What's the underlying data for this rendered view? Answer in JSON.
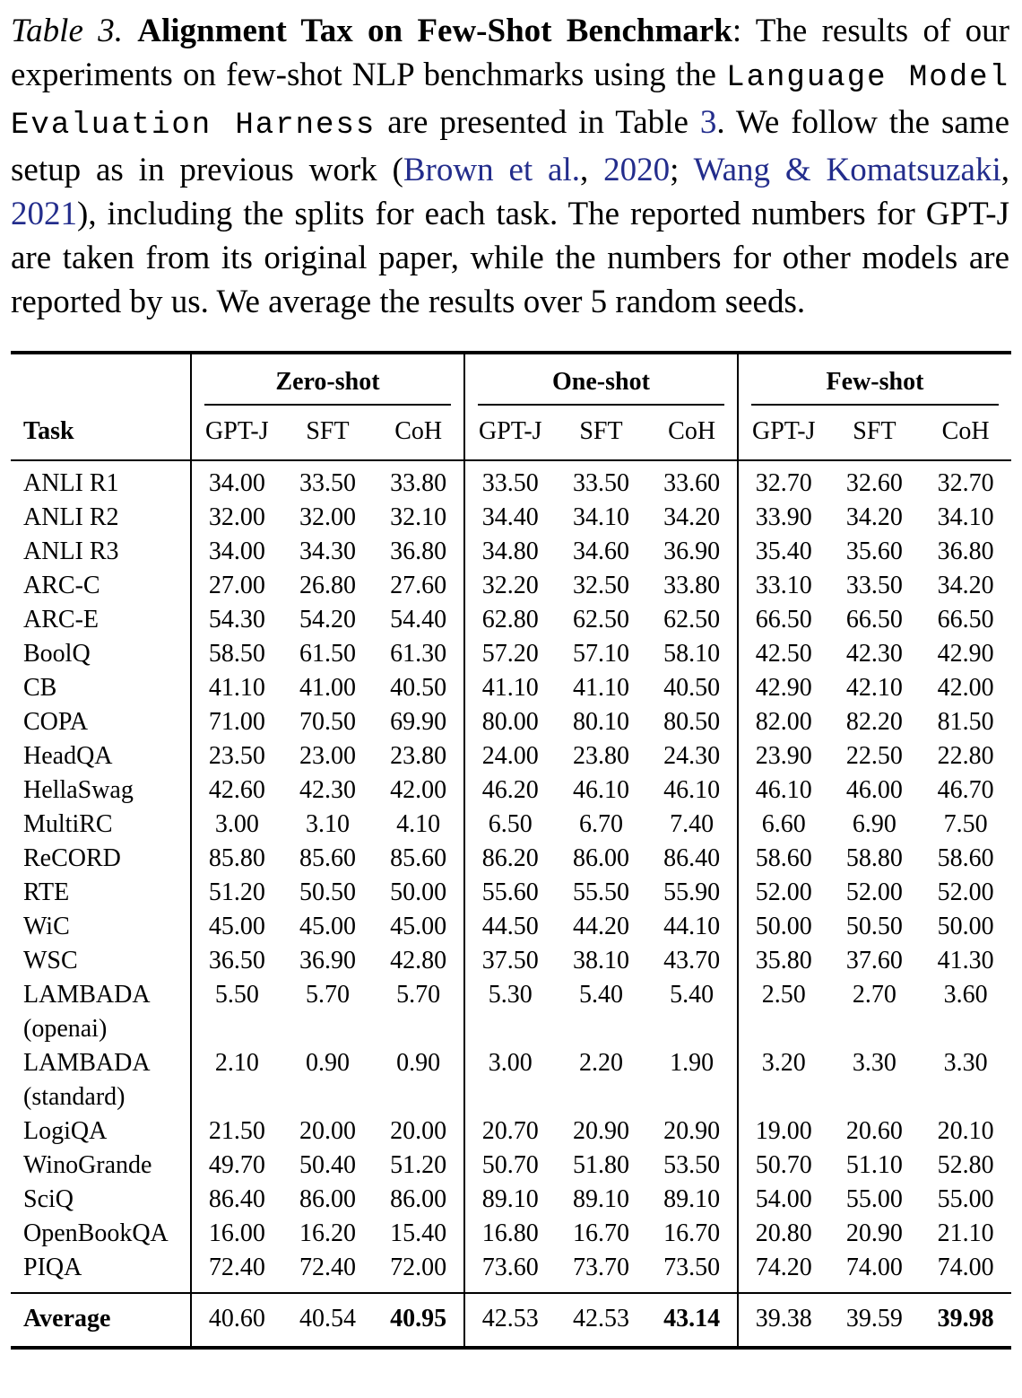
{
  "colors": {
    "background": "#ffffff",
    "text": "#000000",
    "rule": "#000000",
    "link": "#232d8c"
  },
  "caption": {
    "segments": [
      {
        "text": "Table 3. ",
        "style": "italic"
      },
      {
        "text": "Alignment Tax on Few-Shot Benchmark",
        "style": "bold"
      },
      {
        "text": ": The results of our experiments on few-shot NLP benchmarks using the ",
        "style": "normal"
      },
      {
        "text": "Language Model Evaluation Harness",
        "style": "mono"
      },
      {
        "text": " are presented in Table ",
        "style": "normal"
      },
      {
        "text": "3",
        "style": "link"
      },
      {
        "text": ". We follow the same setup as in previous work (",
        "style": "normal"
      },
      {
        "text": "Brown et al.",
        "style": "link"
      },
      {
        "text": ", ",
        "style": "normal"
      },
      {
        "text": "2020",
        "style": "link"
      },
      {
        "text": "; ",
        "style": "normal"
      },
      {
        "text": "Wang & Komatsuzaki",
        "style": "link"
      },
      {
        "text": ", ",
        "style": "normal"
      },
      {
        "text": "2021",
        "style": "link"
      },
      {
        "text": "), including the splits for each task. The reported numbers for GPT-J are taken from its original paper, while the numbers for other models are reported by us. We average the results over 5 random seeds.",
        "style": "normal"
      }
    ]
  },
  "table": {
    "task_header": "Task",
    "groups": [
      "Zero-shot",
      "One-shot",
      "Few-shot"
    ],
    "col_headers": [
      "GPT-J",
      "SFT",
      "CoH"
    ],
    "rows": [
      {
        "task_lines": [
          "ANLI R1"
        ],
        "values": [
          "34.00",
          "33.50",
          "33.80",
          "33.50",
          "33.50",
          "33.60",
          "32.70",
          "32.60",
          "32.70"
        ]
      },
      {
        "task_lines": [
          "ANLI R2"
        ],
        "values": [
          "32.00",
          "32.00",
          "32.10",
          "34.40",
          "34.10",
          "34.20",
          "33.90",
          "34.20",
          "34.10"
        ]
      },
      {
        "task_lines": [
          "ANLI R3"
        ],
        "values": [
          "34.00",
          "34.30",
          "36.80",
          "34.80",
          "34.60",
          "36.90",
          "35.40",
          "35.60",
          "36.80"
        ]
      },
      {
        "task_lines": [
          "ARC-C"
        ],
        "values": [
          "27.00",
          "26.80",
          "27.60",
          "32.20",
          "32.50",
          "33.80",
          "33.10",
          "33.50",
          "34.20"
        ]
      },
      {
        "task_lines": [
          "ARC-E"
        ],
        "values": [
          "54.30",
          "54.20",
          "54.40",
          "62.80",
          "62.50",
          "62.50",
          "66.50",
          "66.50",
          "66.50"
        ]
      },
      {
        "task_lines": [
          "BoolQ"
        ],
        "values": [
          "58.50",
          "61.50",
          "61.30",
          "57.20",
          "57.10",
          "58.10",
          "42.50",
          "42.30",
          "42.90"
        ]
      },
      {
        "task_lines": [
          "CB"
        ],
        "values": [
          "41.10",
          "41.00",
          "40.50",
          "41.10",
          "41.10",
          "40.50",
          "42.90",
          "42.10",
          "42.00"
        ]
      },
      {
        "task_lines": [
          "COPA"
        ],
        "values": [
          "71.00",
          "70.50",
          "69.90",
          "80.00",
          "80.10",
          "80.50",
          "82.00",
          "82.20",
          "81.50"
        ]
      },
      {
        "task_lines": [
          "HeadQA"
        ],
        "values": [
          "23.50",
          "23.00",
          "23.80",
          "24.00",
          "23.80",
          "24.30",
          "23.90",
          "22.50",
          "22.80"
        ]
      },
      {
        "task_lines": [
          "HellaSwag"
        ],
        "values": [
          "42.60",
          "42.30",
          "42.00",
          "46.20",
          "46.10",
          "46.10",
          "46.10",
          "46.00",
          "46.70"
        ]
      },
      {
        "task_lines": [
          "MultiRC"
        ],
        "values": [
          "3.00",
          "3.10",
          "4.10",
          "6.50",
          "6.70",
          "7.40",
          "6.60",
          "6.90",
          "7.50"
        ]
      },
      {
        "task_lines": [
          "ReCORD"
        ],
        "values": [
          "85.80",
          "85.60",
          "85.60",
          "86.20",
          "86.00",
          "86.40",
          "58.60",
          "58.80",
          "58.60"
        ]
      },
      {
        "task_lines": [
          "RTE"
        ],
        "values": [
          "51.20",
          "50.50",
          "50.00",
          "55.60",
          "55.50",
          "55.90",
          "52.00",
          "52.00",
          "52.00"
        ]
      },
      {
        "task_lines": [
          "WiC"
        ],
        "values": [
          "45.00",
          "45.00",
          "45.00",
          "44.50",
          "44.20",
          "44.10",
          "50.00",
          "50.50",
          "50.00"
        ]
      },
      {
        "task_lines": [
          "WSC"
        ],
        "values": [
          "36.50",
          "36.90",
          "42.80",
          "37.50",
          "38.10",
          "43.70",
          "35.80",
          "37.60",
          "41.30"
        ]
      },
      {
        "task_lines": [
          "LAMBADA",
          "(openai)"
        ],
        "values": [
          "5.50",
          "5.70",
          "5.70",
          "5.30",
          "5.40",
          "5.40",
          "2.50",
          "2.70",
          "3.60"
        ]
      },
      {
        "task_lines": [
          "LAMBADA",
          "(standard)"
        ],
        "values": [
          "2.10",
          "0.90",
          "0.90",
          "3.00",
          "2.20",
          "1.90",
          "3.20",
          "3.30",
          "3.30"
        ]
      },
      {
        "task_lines": [
          "LogiQA"
        ],
        "values": [
          "21.50",
          "20.00",
          "20.00",
          "20.70",
          "20.90",
          "20.90",
          "19.00",
          "20.60",
          "20.10"
        ]
      },
      {
        "task_lines": [
          "WinoGrande"
        ],
        "values": [
          "49.70",
          "50.40",
          "51.20",
          "50.70",
          "51.80",
          "53.50",
          "50.70",
          "51.10",
          "52.80"
        ]
      },
      {
        "task_lines": [
          "SciQ"
        ],
        "values": [
          "86.40",
          "86.00",
          "86.00",
          "89.10",
          "89.10",
          "89.10",
          "54.00",
          "55.00",
          "55.00"
        ]
      },
      {
        "task_lines": [
          "OpenBookQA"
        ],
        "values": [
          "16.00",
          "16.20",
          "15.40",
          "16.80",
          "16.70",
          "16.70",
          "20.80",
          "20.90",
          "21.10"
        ]
      },
      {
        "task_lines": [
          "PIQA"
        ],
        "values": [
          "72.40",
          "72.40",
          "72.00",
          "73.60",
          "73.70",
          "73.50",
          "74.20",
          "74.00",
          "74.00"
        ]
      }
    ],
    "average": {
      "task_lines": [
        "Average"
      ],
      "values": [
        "40.60",
        "40.54",
        "40.95",
        "42.53",
        "42.53",
        "43.14",
        "39.38",
        "39.59",
        "39.98"
      ],
      "bold": [
        false,
        false,
        true,
        false,
        false,
        true,
        false,
        false,
        true
      ]
    }
  }
}
